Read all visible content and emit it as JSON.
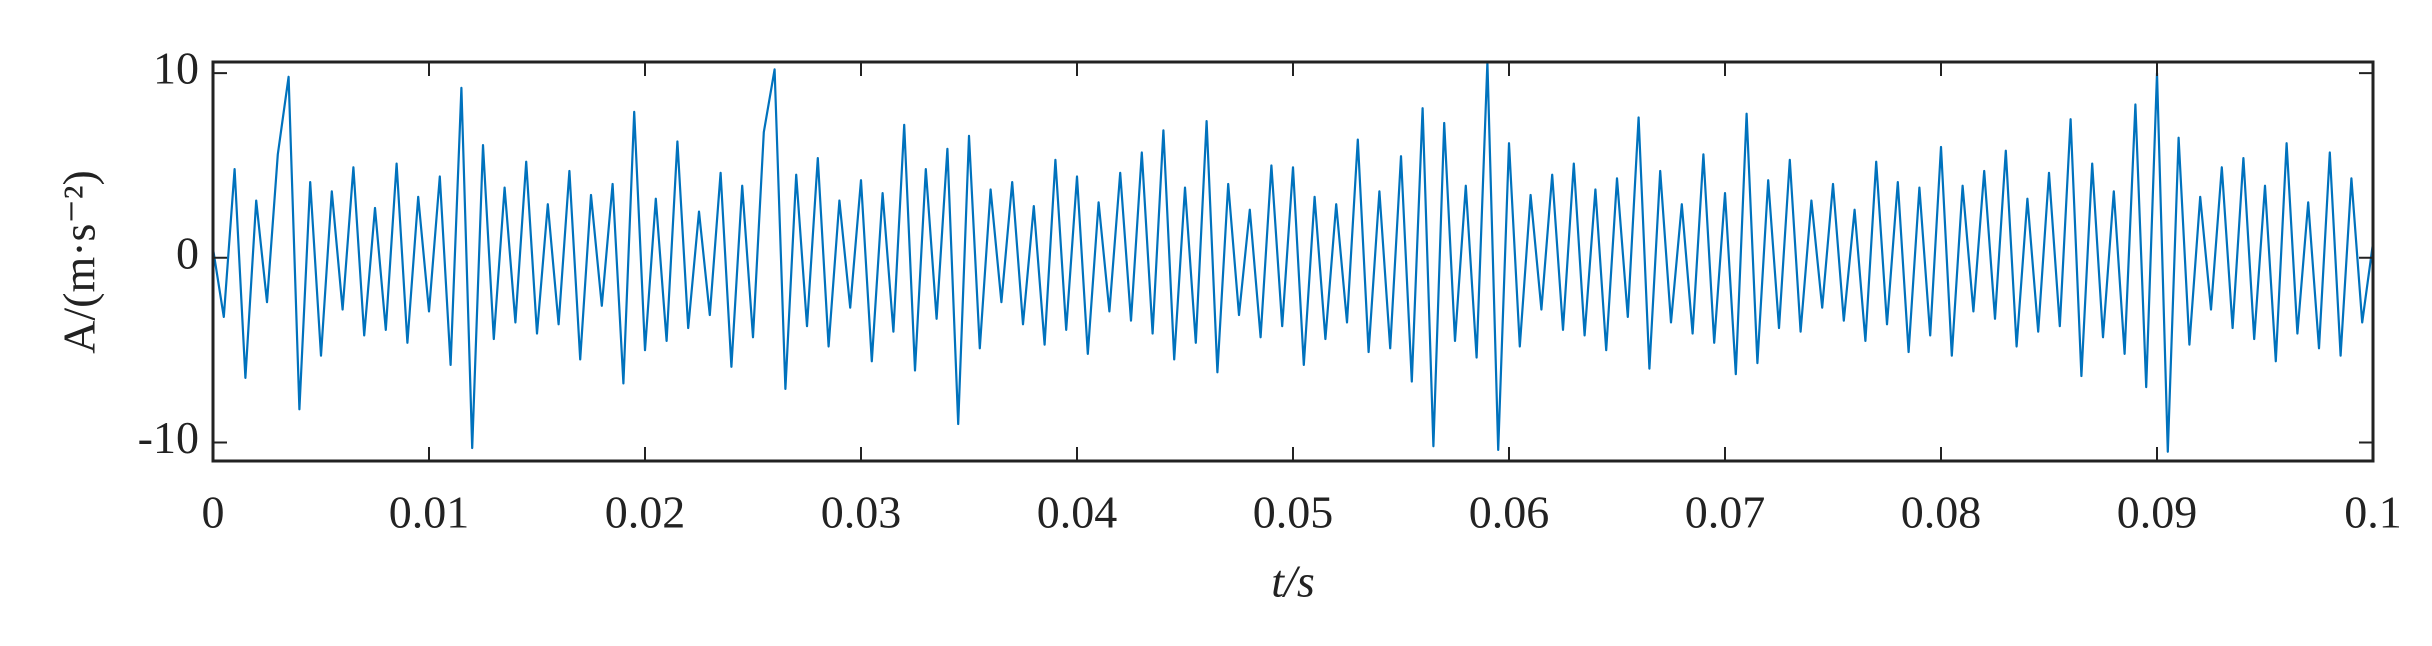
{
  "chart_data": {
    "type": "line",
    "y_label": "A/(m·s⁻²)",
    "x_label": "t/s",
    "xlim": [
      0,
      0.1
    ],
    "ylim": [
      -11,
      10.6
    ],
    "xticks": [
      0,
      0.01,
      0.02,
      0.03,
      0.04,
      0.05,
      0.06,
      0.07,
      0.08,
      0.09,
      0.1
    ],
    "yticks": [
      -10,
      0,
      10
    ],
    "series": [
      {
        "color": "#0072BD",
        "x": [
          0,
          0.0005,
          0.001,
          0.0015,
          0.002,
          0.0025,
          0.003,
          0.0035,
          0.004,
          0.0045,
          0.005,
          0.0055,
          0.006,
          0.0065,
          0.007,
          0.0075,
          0.008,
          0.0085,
          0.009,
          0.0095,
          0.01,
          0.0105,
          0.011,
          0.0115,
          0.012,
          0.0125,
          0.013,
          0.0135,
          0.014,
          0.0145,
          0.015,
          0.0155,
          0.016,
          0.0165,
          0.017,
          0.0175,
          0.018,
          0.0185,
          0.019,
          0.0195,
          0.02,
          0.0205,
          0.021,
          0.0215,
          0.022,
          0.0225,
          0.023,
          0.0235,
          0.024,
          0.0245,
          0.025,
          0.0255,
          0.026,
          0.0265,
          0.027,
          0.0275,
          0.028,
          0.0285,
          0.029,
          0.0295,
          0.03,
          0.0305,
          0.031,
          0.0315,
          0.032,
          0.0325,
          0.033,
          0.0335,
          0.034,
          0.0345,
          0.035,
          0.0355,
          0.036,
          0.0365,
          0.037,
          0.0375,
          0.038,
          0.0385,
          0.039,
          0.0395,
          0.04,
          0.0405,
          0.041,
          0.0415,
          0.042,
          0.0425,
          0.043,
          0.0435,
          0.044,
          0.0445,
          0.045,
          0.0455,
          0.046,
          0.0465,
          0.047,
          0.0475,
          0.048,
          0.0485,
          0.049,
          0.0495,
          0.05,
          0.0505,
          0.051,
          0.0515,
          0.052,
          0.0525,
          0.053,
          0.0535,
          0.054,
          0.0545,
          0.055,
          0.0555,
          0.056,
          0.0565,
          0.057,
          0.0575,
          0.058,
          0.0585,
          0.059,
          0.0595,
          0.06,
          0.0605,
          0.061,
          0.0615,
          0.062,
          0.0625,
          0.063,
          0.0635,
          0.064,
          0.0645,
          0.065,
          0.0655,
          0.066,
          0.0665,
          0.067,
          0.0675,
          0.068,
          0.0685,
          0.069,
          0.0695,
          0.07,
          0.0705,
          0.071,
          0.0715,
          0.072,
          0.0725,
          0.073,
          0.0735,
          0.074,
          0.0745,
          0.075,
          0.0755,
          0.076,
          0.0765,
          0.077,
          0.0775,
          0.078,
          0.0785,
          0.079,
          0.0795,
          0.08,
          0.0805,
          0.081,
          0.0815,
          0.082,
          0.0825,
          0.083,
          0.0835,
          0.084,
          0.0845,
          0.085,
          0.0855,
          0.086,
          0.0865,
          0.087,
          0.0875,
          0.088,
          0.0885,
          0.089,
          0.0895,
          0.09,
          0.0905,
          0.091,
          0.0915,
          0.092,
          0.0925,
          0.093,
          0.0935,
          0.094,
          0.0945,
          0.095,
          0.0955,
          0.096,
          0.0965,
          0.097,
          0.0975,
          0.098,
          0.0985,
          0.099,
          0.0995,
          0.1
        ],
        "values": [
          0.5,
          -3.2,
          4.8,
          -6.5,
          3.1,
          -2.4,
          5.6,
          9.8,
          -8.2,
          4.1,
          -5.3,
          3.6,
          -2.8,
          4.9,
          -4.2,
          2.7,
          -3.9,
          5.1,
          -4.6,
          3.3,
          -2.9,
          4.4,
          -5.8,
          9.2,
          -10.3,
          6.1,
          -4.4,
          3.8,
          -3.5,
          5.2,
          -4.1,
          2.9,
          -3.6,
          4.7,
          -5.5,
          3.4,
          -2.6,
          4.0,
          -6.8,
          7.9,
          -5.0,
          3.2,
          -4.5,
          6.3,
          -3.8,
          2.5,
          -3.1,
          4.6,
          -5.9,
          3.9,
          -4.3,
          6.8,
          10.2,
          -7.1,
          4.5,
          -3.7,
          5.4,
          -4.8,
          3.1,
          -2.7,
          4.2,
          -5.6,
          3.5,
          -4.0,
          7.2,
          -6.1,
          4.8,
          -3.3,
          5.9,
          -9.0,
          6.6,
          -4.9,
          3.7,
          -2.4,
          4.1,
          -3.6,
          2.8,
          -4.7,
          5.3,
          -3.9,
          4.4,
          -5.2,
          3.0,
          -2.9,
          4.6,
          -3.4,
          5.7,
          -4.1,
          6.9,
          -5.5,
          3.8,
          -4.6,
          7.4,
          -6.2,
          4.0,
          -3.1,
          2.6,
          -4.3,
          5.0,
          -3.7,
          4.9,
          -5.8,
          3.3,
          -4.4,
          2.9,
          -3.5,
          6.4,
          -5.1,
          3.6,
          -4.9,
          5.5,
          -6.7,
          8.1,
          -10.2,
          7.3,
          -4.5,
          3.9,
          -5.4,
          10.6,
          -10.4,
          6.2,
          -4.8,
          3.4,
          -2.8,
          4.5,
          -3.9,
          5.1,
          -4.2,
          3.7,
          -5.0,
          4.3,
          -3.2,
          7.6,
          -6.0,
          4.7,
          -3.5,
          2.9,
          -4.1,
          5.6,
          -4.6,
          3.5,
          -6.3,
          7.8,
          -5.7,
          4.2,
          -3.8,
          5.3,
          -4.0,
          3.1,
          -2.7,
          4.0,
          -3.4,
          2.6,
          -4.5,
          5.2,
          -3.6,
          4.1,
          -5.1,
          3.8,
          -4.2,
          6.0,
          -5.3,
          3.9,
          -2.9,
          4.7,
          -3.3,
          5.8,
          -4.8,
          3.2,
          -4.0,
          4.6,
          -3.7,
          7.5,
          -6.4,
          5.1,
          -4.3,
          3.6,
          -5.2,
          8.3,
          -7.0,
          10.0,
          -10.5,
          6.5,
          -4.7,
          3.3,
          -2.8,
          4.9,
          -3.8,
          5.4,
          -4.4,
          3.9,
          -5.6,
          6.2,
          -4.1,
          3.0,
          -4.9,
          5.7,
          -5.3,
          4.3,
          -3.5,
          0.8
        ]
      }
    ]
  }
}
